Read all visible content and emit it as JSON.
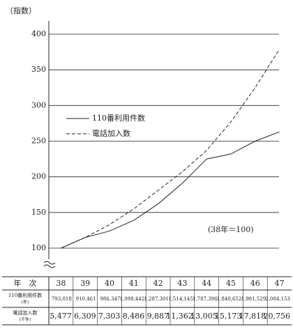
{
  "chart_data": {
    "type": "line",
    "y_label": "（指数）",
    "annotation": "(38年＝100)",
    "categories": [
      "38",
      "39",
      "40",
      "41",
      "42",
      "43",
      "44",
      "45",
      "46",
      "47"
    ],
    "series": [
      {
        "name": "110番利用件数",
        "color": "#222222",
        "dash": "solid",
        "values": [
          100,
          115,
          124,
          139,
          162,
          191,
          225,
          232,
          250,
          263
        ]
      },
      {
        "name": "電話加入数",
        "color": "#222222",
        "dash": "dashed",
        "values": [
          100,
          115,
          133,
          155,
          181,
          207,
          237,
          277,
          325,
          379
        ]
      }
    ],
    "ylim": [
      100,
      400
    ],
    "yticks": [
      100,
      150,
      200,
      250,
      300,
      350,
      400
    ],
    "grid": true,
    "table": {
      "header": "年　次",
      "rows": [
        {
          "label": "110番利用件数",
          "unit": "(件)",
          "values": [
            "793,018",
            "910,461",
            "986,347",
            "1,098,442",
            "1,287,301",
            "1,514,145",
            "1,787,396",
            "1,840,652",
            "1,981,529",
            "2,084,153"
          ]
        },
        {
          "label": "電話加入数",
          "unit": "(千件)",
          "values": [
            "5,477",
            "6,309",
            "7,303",
            "8,486",
            "9,887",
            "11,362",
            "13,005",
            "15,173",
            "17,818",
            "20,756"
          ]
        }
      ]
    }
  }
}
